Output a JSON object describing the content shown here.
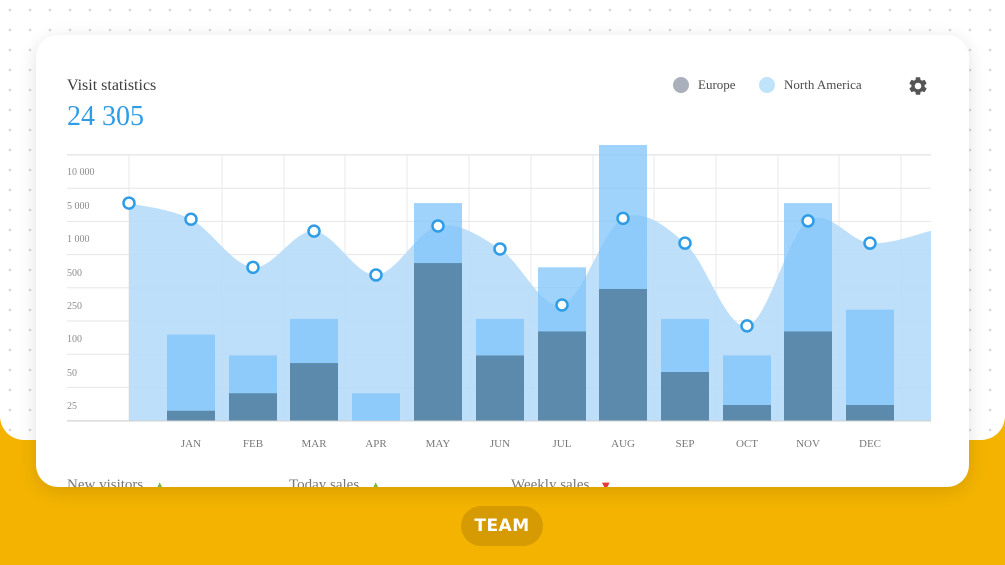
{
  "card": {
    "title": "Visit statistics",
    "total": "24 305",
    "legend": [
      {
        "label": "Europe",
        "color": "#a9b0bb"
      },
      {
        "label": "North America",
        "color": "#bfe3fb"
      }
    ],
    "settings_icon": "gear-icon"
  },
  "chart_data": {
    "type": "bar",
    "categories": [
      "JAN",
      "FEB",
      "MAR",
      "APR",
      "MAY",
      "JUN",
      "JUL",
      "AUG",
      "SEP",
      "OCT",
      "NOV",
      "DEC"
    ],
    "y_ticks": [
      "25",
      "50",
      "100",
      "250",
      "500",
      "1 000",
      "5 000",
      "10 000"
    ],
    "y_scale": "categorical-log",
    "series": [
      {
        "name": "North America",
        "values": [
          110,
          70,
          170,
          32,
          5200,
          170,
          550,
          17000,
          170,
          70,
          5200,
          220
        ]
      },
      {
        "name": "Europe",
        "values": [
          16,
          32,
          60,
          0,
          600,
          70,
          120,
          350,
          50,
          25,
          120,
          25
        ]
      }
    ],
    "area": {
      "x": [
        "",
        "JAN",
        "FEB",
        "MAR",
        "APR",
        "MAY",
        "JUN",
        "JUL",
        "AUG",
        "SEP",
        "OCT",
        "NOV",
        "DEC"
      ],
      "values": [
        5200,
        2500,
        550,
        1400,
        470,
        1800,
        800,
        250,
        2600,
        900,
        140,
        2300,
        900
      ]
    },
    "colors": {
      "north_america_bar": "#7fc4fa",
      "europe_bar": "#5a86a8",
      "area_fill": "#b6dcf9",
      "point": "#2f9ce6"
    },
    "grid": true,
    "legend_position": "top-right"
  },
  "footer": {
    "stats": [
      {
        "label": "New visitors",
        "trend": "up",
        "color": "#6dbb3f"
      },
      {
        "label": "Today sales",
        "trend": "up",
        "color": "#6dbb3f"
      },
      {
        "label": "Weekly sales",
        "trend": "down",
        "color": "#e53935"
      }
    ],
    "badge": "TEAM"
  }
}
